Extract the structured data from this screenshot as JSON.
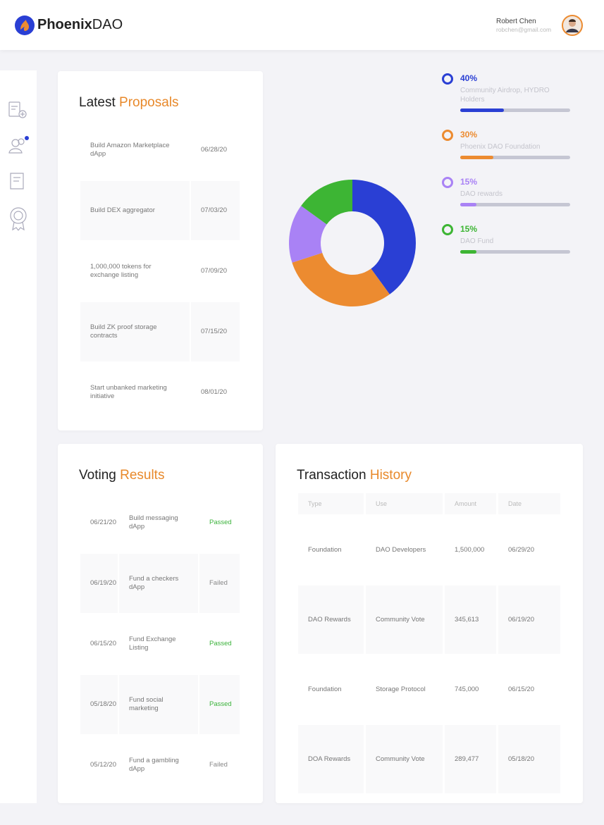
{
  "header": {
    "logo_bold": "Phoenix",
    "logo_light": "DAO",
    "user_name": "Robert Chen",
    "user_email": "robchen@gmail.com"
  },
  "proposals": {
    "title": "Latest",
    "title_accent": "Proposals",
    "rows": [
      [
        "Build Amazon Marketplace dApp",
        "06/28/20"
      ],
      [
        "Build DEX aggregator",
        "07/03/20"
      ],
      [
        "1,000,000 tokens for exchange listing",
        "07/09/20"
      ],
      [
        "Build ZK proof storage contracts",
        "07/15/20"
      ],
      [
        "Start unbanked marketing initiative",
        "08/01/20"
      ]
    ]
  },
  "allocation": {
    "values": [
      40,
      30,
      15,
      15
    ],
    "value_labels": [
      "40%",
      "30%",
      "15%",
      "15%"
    ],
    "names": [
      "Community Airdrop, HYDRO Holders",
      "Phoenix DAO Foundation",
      "DAO rewards",
      "DAO Fund"
    ],
    "colors": [
      "#2a3fd4",
      "#ec8b30",
      "#a982f5",
      "#3db534"
    ]
  },
  "voting": {
    "title": "Voting",
    "title_accent": "Results",
    "rows": [
      [
        "06/21/20",
        "Build messaging dApp",
        "Passed"
      ],
      [
        "06/19/20",
        "Fund a checkers dApp",
        "Failed"
      ],
      [
        "06/15/20",
        "Fund Exchange Listing",
        "Passed"
      ],
      [
        "05/18/20",
        "Fund social marketing",
        "Passed"
      ],
      [
        "05/12/20",
        "Fund a gambling dApp",
        "Failed"
      ]
    ],
    "status_colors": [
      "#3cb33c",
      "#888888",
      "#3cb33c",
      "#3cb33c",
      "#888888"
    ]
  },
  "transactions": {
    "title": "Transaction",
    "title_accent": "History",
    "columns": [
      "Type",
      "Use",
      "Amount",
      "Date"
    ],
    "rows": [
      [
        "Foundation",
        "DAO Developers",
        "1,500,000",
        "06/29/20"
      ],
      [
        "DAO Rewards",
        "Community Vote",
        "345,613",
        "06/19/20"
      ],
      [
        "Foundation",
        "Storage Protocol",
        "745,000",
        "06/15/20"
      ],
      [
        "DOA Rewards",
        "Community Vote",
        "289,477",
        "05/18/20"
      ]
    ]
  }
}
